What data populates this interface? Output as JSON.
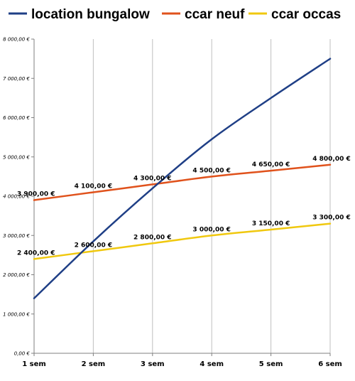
{
  "chart_data": {
    "type": "line",
    "title": "",
    "xlabel": "",
    "ylabel": "",
    "categories": [
      "1 sem",
      "2 sem",
      "3 sem",
      "4 sem",
      "5 sem",
      "6 sem"
    ],
    "ylim": [
      0,
      8000
    ],
    "y_ticks": [
      "0,00 €",
      "1 000,00 €",
      "2 000,00 €",
      "3 000,00 €",
      "4 000,00 €",
      "5 000,00 €",
      "6 000,00 €",
      "7 000,00 €",
      "8 000,00 €"
    ],
    "grid": "vertical",
    "legend_position": "top",
    "series": [
      {
        "name": "location bungalow",
        "color": "#1f3f86",
        "values": [
          1400,
          2850,
          4200,
          5450,
          6500,
          7500
        ],
        "labels": [
          "",
          "",
          "",
          "",
          "",
          ""
        ]
      },
      {
        "name": "ccar neuf",
        "color": "#e0521c",
        "values": [
          3900,
          4100,
          4300,
          4500,
          4650,
          4800
        ],
        "labels": [
          "3 900,00 €",
          "4 100,00 €",
          "4 300,00 €",
          "4 500,00 €",
          "4 650,00 €",
          "4 800,00 €"
        ]
      },
      {
        "name": "ccar occas",
        "color": "#f0c80f",
        "values": [
          2400,
          2600,
          2800,
          3000,
          3150,
          3300
        ],
        "labels": [
          "2 400,00 €",
          "2 600,00 €",
          "2 800,00 €",
          "3 000,00 €",
          "3 150,00 €",
          "3 300,00 €"
        ]
      }
    ]
  }
}
